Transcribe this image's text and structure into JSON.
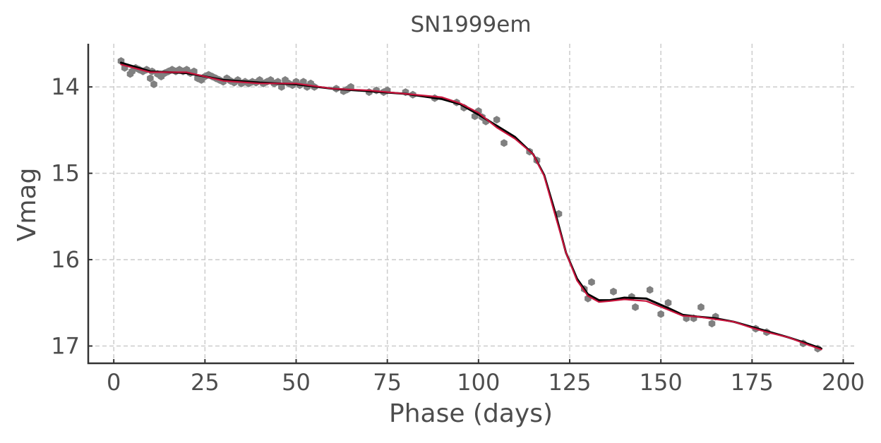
{
  "chart_data": {
    "type": "scatter",
    "title": "SN1999em",
    "xlabel": "Phase (days)",
    "ylabel": "Vmag",
    "xlim": [
      -7,
      203
    ],
    "ylim": [
      17.2,
      13.5
    ],
    "y_inverted": true,
    "grid": true,
    "xticks": [
      0,
      25,
      50,
      75,
      100,
      125,
      150,
      175,
      200
    ],
    "yticks": [
      14,
      15,
      16,
      17
    ],
    "series": [
      {
        "kind": "scatter",
        "marker": "hexagon",
        "color": "#808080",
        "x": [
          2,
          3,
          4.5,
          5,
          6,
          7,
          8,
          9,
          10,
          10.5,
          11,
          12,
          13,
          14,
          15,
          16,
          17,
          18,
          19,
          20,
          21,
          22,
          23,
          24,
          25,
          26,
          27,
          28,
          29,
          30,
          31,
          32,
          33,
          34,
          35,
          36,
          37,
          38,
          39,
          40,
          41,
          42,
          43,
          44,
          45,
          46,
          47,
          48,
          49,
          50,
          51,
          52,
          53,
          54,
          55,
          61,
          63,
          64,
          65,
          70,
          72,
          74,
          75,
          80,
          82,
          88,
          94,
          96,
          99,
          100,
          101,
          102,
          105,
          107,
          114,
          116,
          122,
          129,
          130,
          131,
          137,
          142,
          143,
          147,
          150,
          152,
          157,
          159,
          161,
          164,
          165,
          176,
          179,
          189,
          193
        ],
        "y": [
          13.7,
          13.78,
          13.85,
          13.82,
          13.78,
          13.8,
          13.82,
          13.8,
          13.9,
          13.82,
          13.97,
          13.85,
          13.88,
          13.84,
          13.82,
          13.8,
          13.82,
          13.8,
          13.82,
          13.8,
          13.84,
          13.82,
          13.9,
          13.92,
          13.88,
          13.86,
          13.88,
          13.9,
          13.92,
          13.94,
          13.9,
          13.93,
          13.95,
          13.92,
          13.96,
          13.94,
          13.96,
          13.94,
          13.95,
          13.92,
          13.96,
          13.94,
          13.92,
          13.96,
          13.94,
          14.0,
          13.92,
          13.96,
          13.98,
          13.94,
          13.98,
          13.94,
          14.0,
          13.96,
          14.0,
          14.02,
          14.05,
          14.03,
          14.0,
          14.06,
          14.04,
          14.06,
          14.04,
          14.06,
          14.09,
          14.13,
          14.18,
          14.24,
          14.34,
          14.28,
          14.35,
          14.4,
          14.38,
          14.65,
          14.75,
          14.85,
          15.47,
          16.34,
          16.45,
          16.26,
          16.37,
          16.43,
          16.55,
          16.35,
          16.63,
          16.5,
          16.68,
          16.68,
          16.55,
          16.74,
          16.66,
          16.8,
          16.84,
          16.97,
          17.03
        ]
      },
      {
        "kind": "line",
        "color": "#000000",
        "x": [
          2,
          10,
          20,
          30,
          40,
          50,
          60,
          70,
          80,
          90,
          95,
          100,
          105,
          110,
          115,
          118,
          121,
          124,
          127,
          130,
          133,
          136,
          140,
          146,
          152,
          156,
          160,
          165,
          170,
          175,
          180,
          185,
          190,
          194
        ],
        "y": [
          13.72,
          13.82,
          13.84,
          13.92,
          13.95,
          13.97,
          14.02,
          14.05,
          14.08,
          14.14,
          14.2,
          14.32,
          14.45,
          14.58,
          14.78,
          15.02,
          15.45,
          15.92,
          16.22,
          16.4,
          16.47,
          16.47,
          16.44,
          16.45,
          16.56,
          16.64,
          16.66,
          16.68,
          16.72,
          16.78,
          16.84,
          16.9,
          16.97,
          17.03
        ]
      },
      {
        "kind": "line",
        "color": "#c8143c",
        "x": [
          2,
          10,
          20,
          30,
          40,
          50,
          60,
          70,
          80,
          90,
          95,
          100,
          105,
          110,
          115,
          118,
          121,
          124,
          127,
          130,
          133,
          136,
          140,
          146,
          152,
          156,
          160,
          165,
          170,
          175,
          180,
          185,
          190,
          194
        ],
        "y": [
          13.74,
          13.83,
          13.83,
          13.93,
          13.96,
          13.96,
          14.02,
          14.04,
          14.08,
          14.12,
          14.19,
          14.3,
          14.47,
          14.6,
          14.78,
          15.03,
          15.48,
          15.92,
          16.24,
          16.42,
          16.49,
          16.48,
          16.46,
          16.48,
          16.58,
          16.65,
          16.66,
          16.69,
          16.72,
          16.79,
          16.85,
          16.9,
          16.98,
          17.04
        ]
      }
    ]
  }
}
